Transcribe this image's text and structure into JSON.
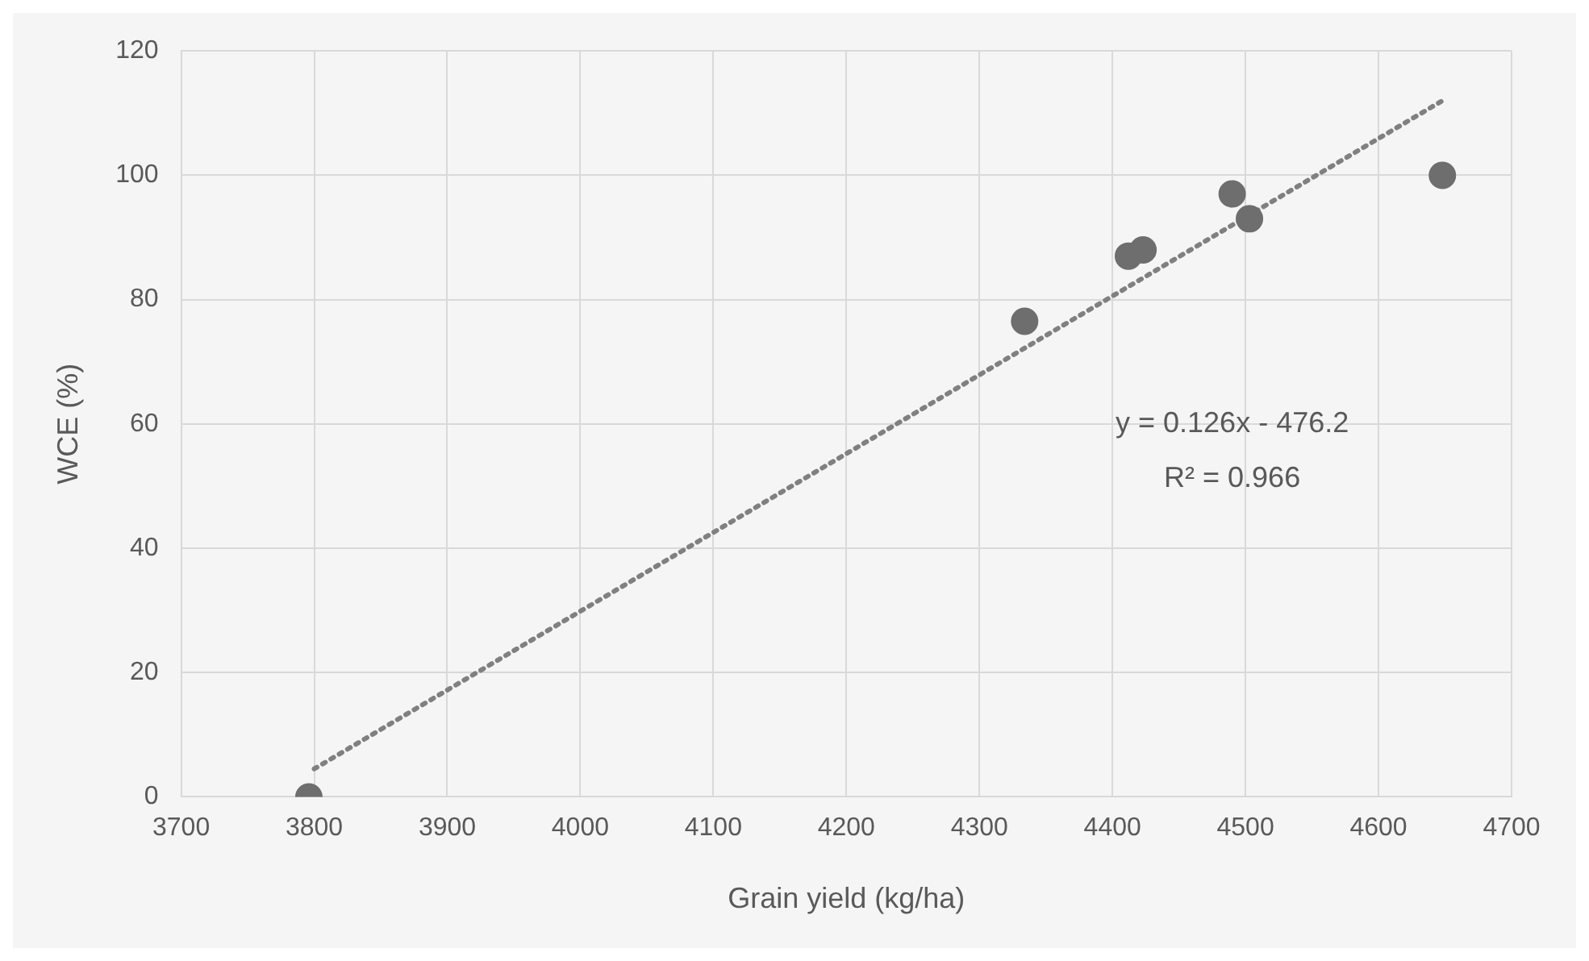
{
  "chart_data": {
    "type": "scatter",
    "xlabel": "Grain yield (kg/ha)",
    "ylabel": "WCE (%)",
    "xlim": [
      3700,
      4700
    ],
    "xticks": [
      3700,
      3800,
      3900,
      4000,
      4100,
      4200,
      4300,
      4400,
      4500,
      4600,
      4700
    ],
    "ylim": [
      0,
      120
    ],
    "yticks": [
      0,
      20,
      40,
      60,
      80,
      100,
      120
    ],
    "grid": true,
    "marker": "circle",
    "series": [
      {
        "color": "#6e6e6e",
        "x": [
          3796,
          4334,
          4412,
          4423,
          4490,
          4503,
          4648
        ],
        "values": [
          0,
          76.5,
          87,
          88,
          97,
          93,
          100
        ]
      },
      {
        "type": "line",
        "color": "#808080",
        "line_style": "dotted",
        "marker": "none",
        "x": [
          3800,
          4648
        ],
        "values": [
          4.5,
          112
        ]
      }
    ],
    "annotations": [
      "y = 0.126x - 476.2",
      "R² = 0.966"
    ]
  }
}
